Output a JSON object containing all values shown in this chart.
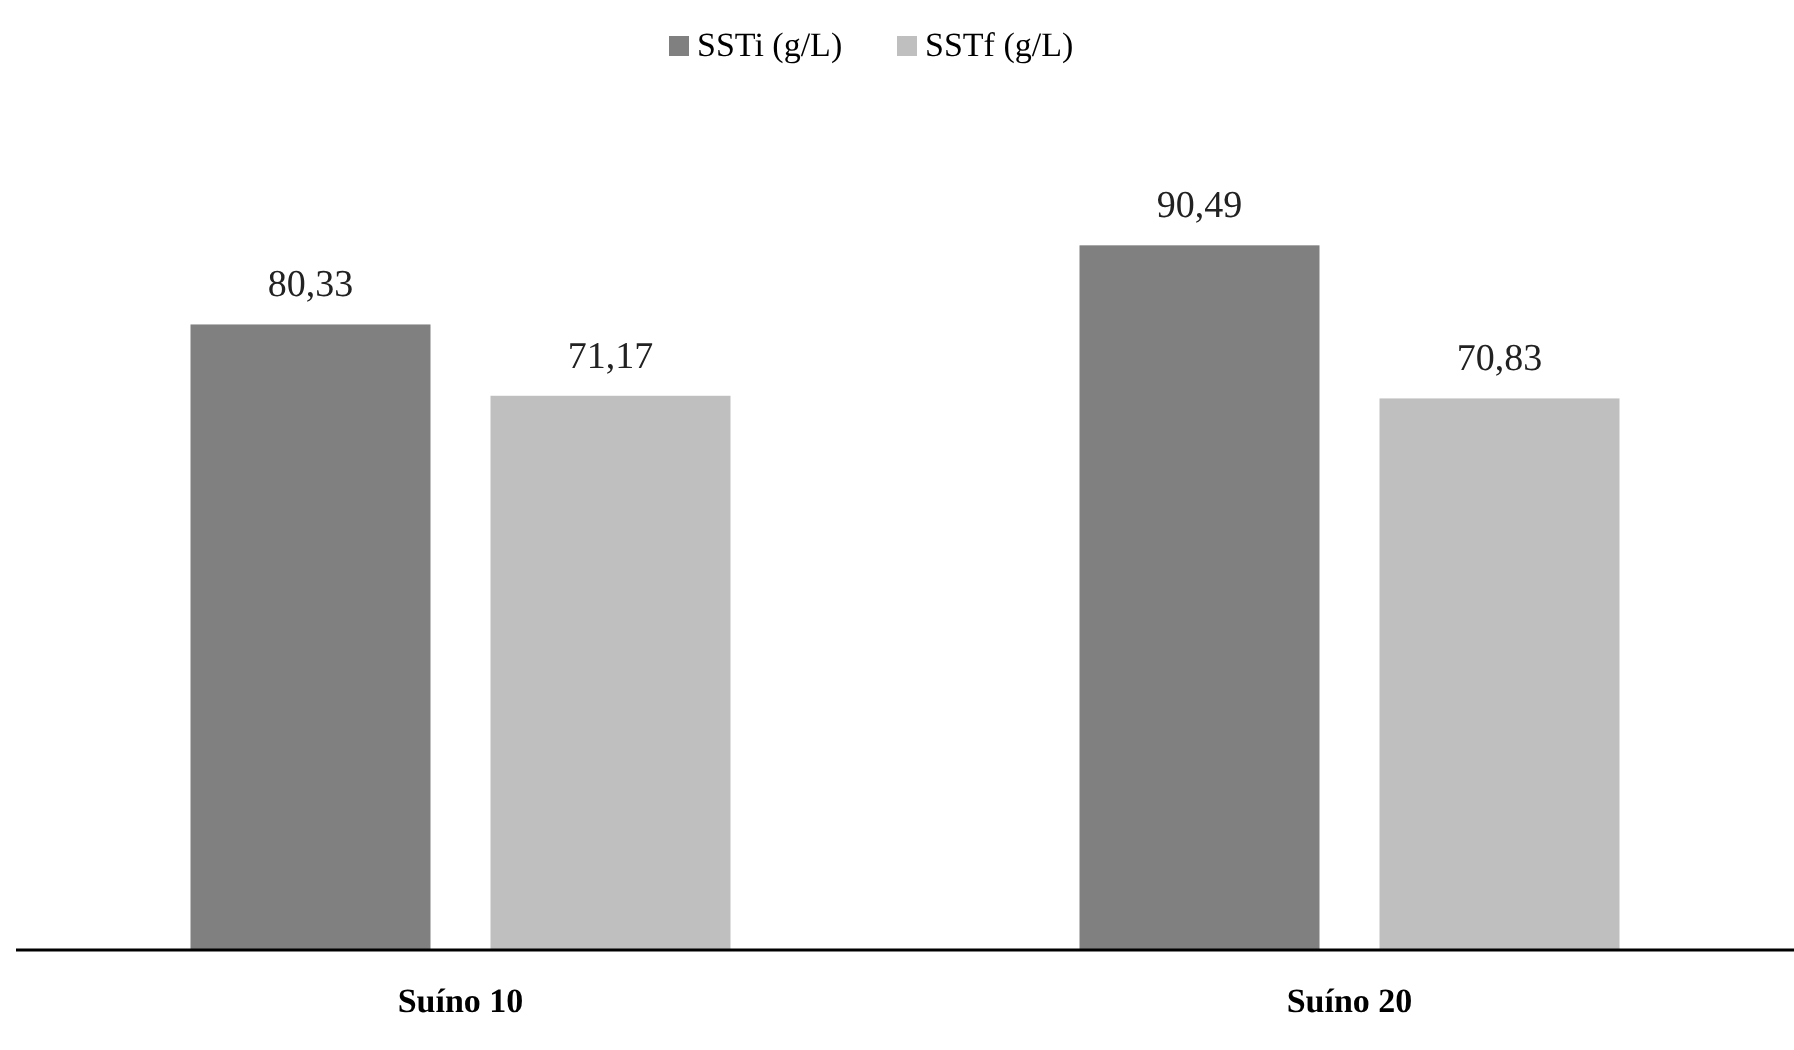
{
  "chart_data": {
    "type": "bar",
    "categories": [
      "Suíno 10",
      "Suíno 20"
    ],
    "series": [
      {
        "name": "SSTi (g/L)",
        "color": "#808080",
        "values": [
          80.33,
          90.49
        ],
        "value_labels": [
          "80,33",
          "90,49"
        ]
      },
      {
        "name": "SSTf (g/L)",
        "color": "#bfbfbf",
        "values": [
          71.17,
          70.83
        ],
        "value_labels": [
          "71,17",
          "70,83"
        ]
      }
    ],
    "legend": "top",
    "grid": false
  }
}
